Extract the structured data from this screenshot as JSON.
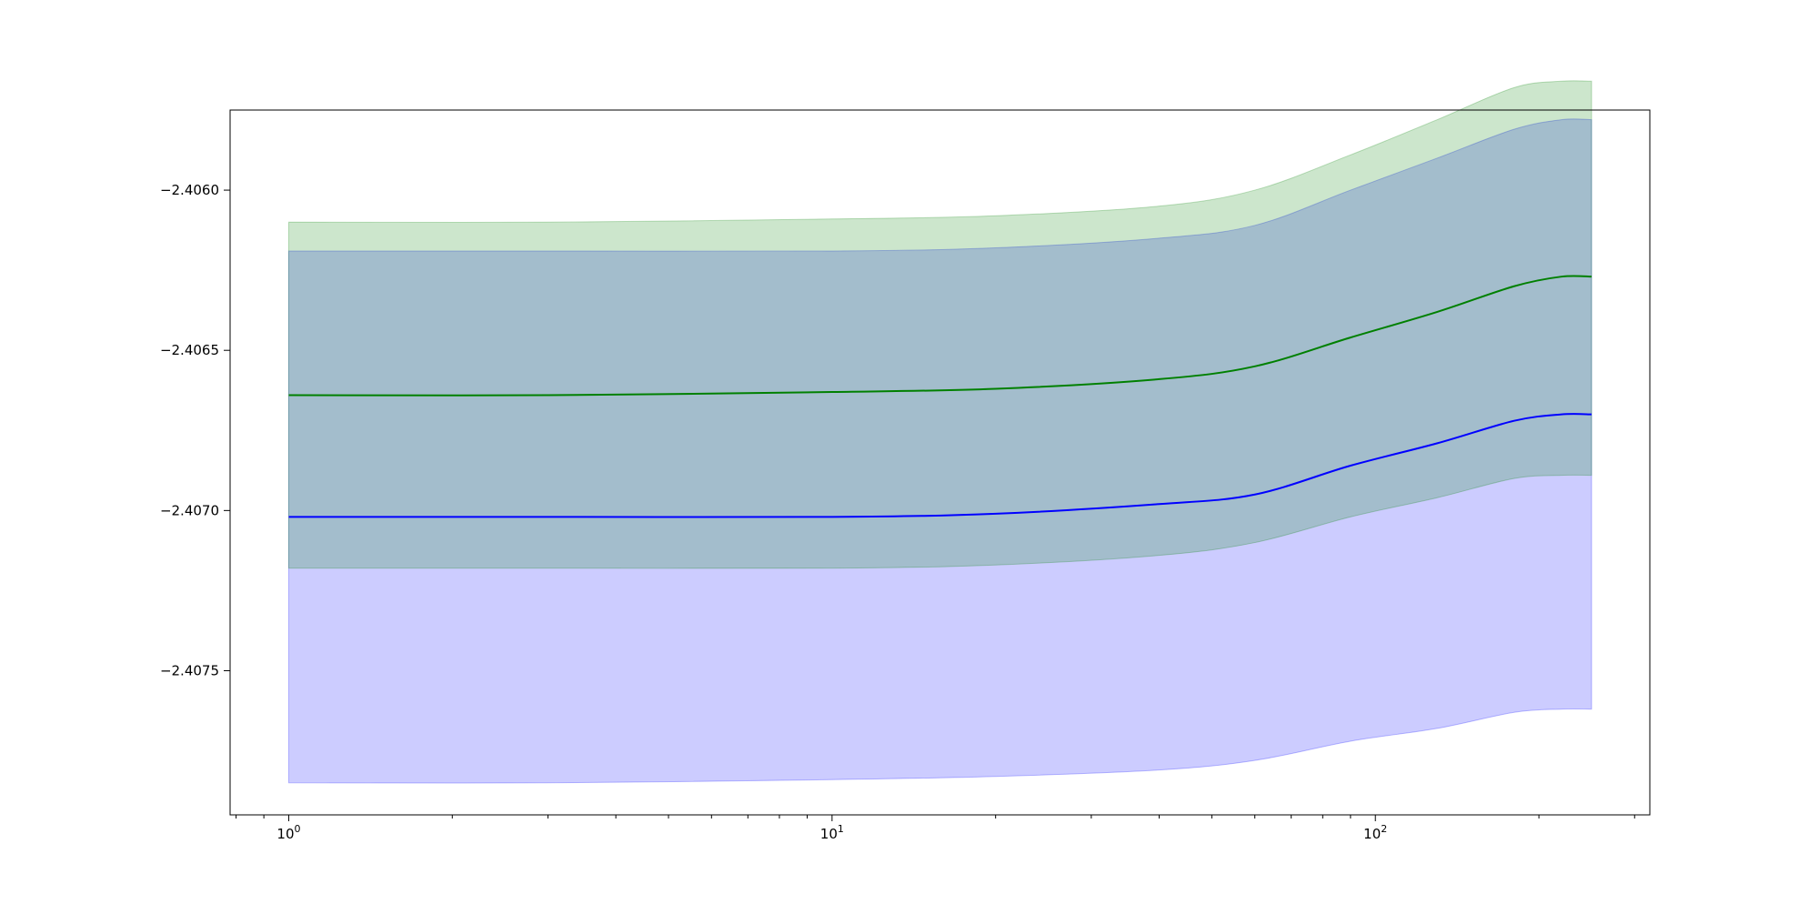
{
  "chart_data": {
    "type": "area",
    "title": "",
    "xlabel": "",
    "ylabel": "",
    "x_scale": "log",
    "xlim": [
      0.78,
      320
    ],
    "ylim": [
      -2.40795,
      -2.40575
    ],
    "grid": false,
    "x_ticks": [
      {
        "value": 1,
        "base": "10",
        "exp": "0"
      },
      {
        "value": 10,
        "base": "10",
        "exp": "1"
      },
      {
        "value": 100,
        "base": "10",
        "exp": "2"
      }
    ],
    "y_ticks": [
      {
        "value": -2.406,
        "label": "−2.4060"
      },
      {
        "value": -2.4065,
        "label": "−2.4065"
      },
      {
        "value": -2.407,
        "label": "−2.4070"
      },
      {
        "value": -2.4075,
        "label": "−2.4075"
      }
    ],
    "x": [
      1,
      3,
      10,
      20,
      40,
      60,
      90,
      130,
      180,
      220,
      250
    ],
    "series": [
      {
        "color": "#0000ff",
        "band_color": "#0000ff",
        "band_opacity": 0.2,
        "mean": [
          -2.40702,
          -2.40702,
          -2.40702,
          -2.40701,
          -2.40698,
          -2.40695,
          -2.40686,
          -2.40679,
          -2.40672,
          -2.4067,
          -2.4067
        ],
        "lower": [
          -2.40785,
          -2.40785,
          -2.40784,
          -2.40783,
          -2.40781,
          -2.40778,
          -2.40772,
          -2.40768,
          -2.40763,
          -2.40762,
          -2.40762
        ],
        "upper": [
          -2.40619,
          -2.40619,
          -2.40619,
          -2.40618,
          -2.40615,
          -2.40611,
          -2.406,
          -2.4059,
          -2.40581,
          -2.40578,
          -2.40578
        ]
      },
      {
        "color": "#008000",
        "band_color": "#008000",
        "band_opacity": 0.2,
        "mean": [
          -2.40664,
          -2.40664,
          -2.40663,
          -2.40662,
          -2.40659,
          -2.40655,
          -2.40646,
          -2.40638,
          -2.4063,
          -2.40627,
          -2.40627
        ],
        "lower": [
          -2.40718,
          -2.40718,
          -2.40718,
          -2.40717,
          -2.40714,
          -2.4071,
          -2.40702,
          -2.40696,
          -2.4069,
          -2.40689,
          -2.40689
        ],
        "upper": [
          -2.4061,
          -2.4061,
          -2.40609,
          -2.40608,
          -2.40605,
          -2.406,
          -2.40589,
          -2.40578,
          -2.40568,
          -2.40566,
          -2.40566
        ]
      }
    ]
  }
}
